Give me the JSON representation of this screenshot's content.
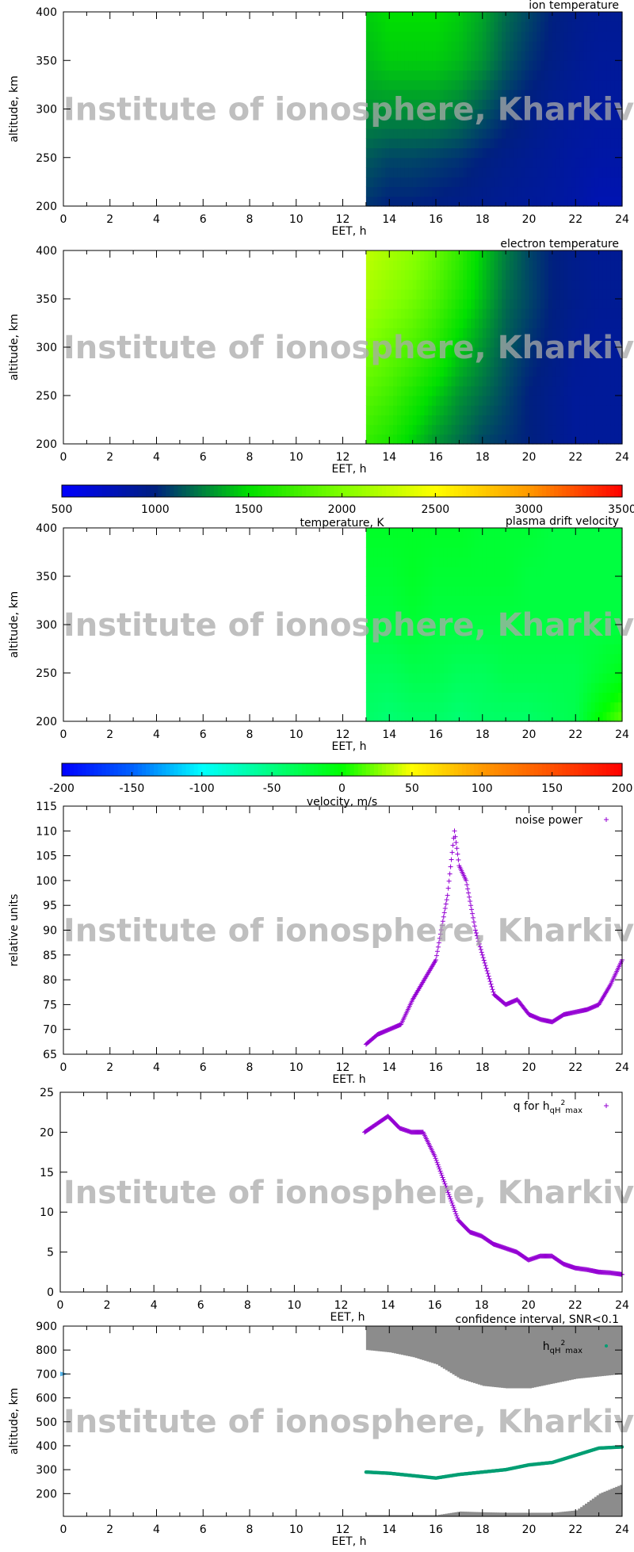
{
  "watermark": "Institute of ionosphere, Kharkiv",
  "chart_data": [
    {
      "type": "heatmap",
      "title": "ion temperature",
      "xlabel": "EET, h",
      "ylabel": "altitude, km",
      "xlim": [
        0,
        24
      ],
      "ylim": [
        200,
        400
      ],
      "x_ticks": [
        0,
        2,
        4,
        6,
        8,
        10,
        12,
        14,
        16,
        18,
        20,
        22,
        24
      ],
      "y_ticks": [
        200,
        250,
        300,
        350,
        400
      ],
      "x": [
        13,
        14,
        15,
        16,
        17,
        18,
        19,
        20,
        21,
        22,
        23,
        24
      ],
      "y": [
        200,
        250,
        300,
        350,
        400
      ],
      "values": [
        [
          1050,
          1000,
          1000,
          980,
          960,
          940,
          920,
          900,
          880,
          850,
          800,
          800
        ],
        [
          1150,
          1100,
          1100,
          1080,
          1050,
          1000,
          960,
          930,
          900,
          870,
          850,
          850
        ],
        [
          1300,
          1300,
          1300,
          1300,
          1250,
          1150,
          1050,
          980,
          930,
          900,
          880,
          880
        ],
        [
          1400,
          1450,
          1450,
          1450,
          1400,
          1300,
          1150,
          1050,
          980,
          930,
          900,
          900
        ],
        [
          1450,
          1500,
          1500,
          1500,
          1450,
          1350,
          1200,
          1100,
          1000,
          950,
          920,
          920
        ]
      ],
      "colorscale": "temperature"
    },
    {
      "type": "heatmap",
      "title": "electron temperature",
      "xlabel": "EET, h",
      "ylabel": "altitude, km",
      "xlim": [
        0,
        24
      ],
      "ylim": [
        200,
        400
      ],
      "x_ticks": [
        0,
        2,
        4,
        6,
        8,
        10,
        12,
        14,
        16,
        18,
        20,
        22,
        24
      ],
      "y_ticks": [
        200,
        250,
        300,
        350,
        400
      ],
      "x": [
        13,
        14,
        15,
        16,
        17,
        18,
        19,
        20,
        21,
        22,
        23,
        24
      ],
      "y": [
        200,
        250,
        300,
        350,
        400
      ],
      "values": [
        [
          1700,
          1600,
          1450,
          1300,
          1200,
          1100,
          1050,
          1000,
          950,
          900,
          900,
          900
        ],
        [
          1850,
          1750,
          1600,
          1450,
          1300,
          1200,
          1100,
          1000,
          950,
          900,
          900,
          900
        ],
        [
          2000,
          1900,
          1800,
          1650,
          1450,
          1300,
          1150,
          1050,
          980,
          920,
          900,
          900
        ],
        [
          2150,
          2050,
          1950,
          1800,
          1600,
          1400,
          1200,
          1100,
          1000,
          950,
          920,
          920
        ],
        [
          2250,
          2150,
          2050,
          1900,
          1700,
          1450,
          1250,
          1100,
          1000,
          950,
          920,
          920
        ]
      ],
      "colorscale": "temperature"
    },
    {
      "type": "colorbar",
      "label": "temperature, K",
      "range": [
        500,
        3500
      ],
      "ticks": [
        500,
        1000,
        1500,
        2000,
        2500,
        3000,
        3500
      ],
      "colors": [
        "#0000ff",
        "#00207f",
        "#00e000",
        "#80ff00",
        "#ffff00",
        "#ff9900",
        "#ff0000"
      ]
    },
    {
      "type": "heatmap",
      "title": "plasma drift velocity",
      "xlabel": "EET, h",
      "ylabel": "altitude, km",
      "xlim": [
        0,
        24
      ],
      "ylim": [
        200,
        400
      ],
      "x_ticks": [
        0,
        2,
        4,
        6,
        8,
        10,
        12,
        14,
        16,
        18,
        20,
        22,
        24
      ],
      "y_ticks": [
        200,
        250,
        300,
        350,
        400
      ],
      "x": [
        13,
        14,
        15,
        16,
        17,
        18,
        19,
        20,
        21,
        22,
        23,
        24
      ],
      "y": [
        200,
        250,
        300,
        350,
        400
      ],
      "values": [
        [
          -40,
          -45,
          -40,
          -40,
          -45,
          -40,
          -40,
          -40,
          -35,
          -30,
          0,
          20
        ],
        [
          -35,
          -35,
          -30,
          -30,
          -35,
          -35,
          -30,
          -30,
          -30,
          -30,
          -20,
          -10
        ],
        [
          -25,
          -25,
          -20,
          -25,
          -25,
          -25,
          -25,
          -25,
          -25,
          -25,
          -25,
          -25
        ],
        [
          -20,
          -20,
          -15,
          -20,
          -20,
          -20,
          -20,
          -25,
          -25,
          -25,
          -25,
          -25
        ],
        [
          -15,
          -15,
          -15,
          -15,
          -15,
          -20,
          -20,
          -20,
          -25,
          -25,
          -25,
          -25
        ]
      ],
      "colorscale": "velocity"
    },
    {
      "type": "colorbar",
      "label": "velocity, m/s",
      "range": [
        -200,
        200
      ],
      "ticks": [
        -200,
        -150,
        -100,
        -50,
        0,
        50,
        100,
        150,
        200
      ],
      "colors": [
        "#0000ff",
        "#0060ff",
        "#00ffff",
        "#00ff80",
        "#00ff00",
        "#ffff00",
        "#ff9900",
        "#ff5000",
        "#ff0000"
      ]
    },
    {
      "type": "scatter",
      "legend": "noise power",
      "xlabel": "EET. h",
      "ylabel": "relative units",
      "xlim": [
        0,
        24
      ],
      "ylim": [
        65,
        115
      ],
      "x_ticks": [
        0,
        2,
        4,
        6,
        8,
        10,
        12,
        14,
        16,
        18,
        20,
        22,
        24
      ],
      "y_ticks": [
        65,
        70,
        75,
        80,
        85,
        90,
        95,
        100,
        105,
        110,
        115
      ],
      "color": "#9400d3",
      "marker": "+",
      "x": [
        13,
        13.5,
        14,
        14.5,
        15,
        15.5,
        16,
        16.5,
        16.8,
        17,
        17.3,
        17.7,
        18,
        18.5,
        19,
        19.5,
        20,
        20.5,
        21,
        21.5,
        22,
        22.5,
        23,
        23.5,
        24
      ],
      "y": [
        67,
        69,
        70,
        71,
        76,
        80,
        84,
        97,
        110,
        103,
        100,
        90,
        85,
        77,
        75,
        76,
        73,
        72,
        71.5,
        73,
        73.5,
        74,
        75,
        79,
        84
      ]
    },
    {
      "type": "scatter",
      "legend": "q for h",
      "legend_sub": "qH",
      "legend_sup": "2",
      "legend_sub2": "max",
      "xlabel": "EET, h",
      "ylabel": "",
      "xlim": [
        0,
        24
      ],
      "ylim": [
        0,
        25
      ],
      "x_ticks": [
        0,
        2,
        4,
        6,
        8,
        10,
        12,
        14,
        16,
        18,
        20,
        22,
        24
      ],
      "y_ticks": [
        0,
        5,
        10,
        15,
        20,
        25
      ],
      "color": "#9400d3",
      "marker": "+",
      "x": [
        13,
        13.5,
        14,
        14.5,
        15,
        15.5,
        16,
        16.5,
        17,
        17.5,
        18,
        18.5,
        19,
        19.5,
        20,
        20.5,
        21,
        21.5,
        22,
        22.5,
        23,
        23.5,
        24
      ],
      "y": [
        20,
        21,
        22,
        20.5,
        20,
        20,
        17,
        13,
        9,
        7.5,
        7,
        6,
        5.5,
        5,
        4,
        4.5,
        4.5,
        3.5,
        3,
        2.8,
        2.5,
        2.4,
        2.2
      ]
    },
    {
      "type": "scatter",
      "title": "confidence interval, SNR<0.1",
      "legend": "h",
      "legend_sub": "qH",
      "legend_sup": "2",
      "legend_sub2": "max",
      "xlabel": "EET, h",
      "ylabel": "altitude, km",
      "xlim": [
        0,
        24
      ],
      "ylim": [
        105,
        900
      ],
      "x_ticks": [
        0,
        2,
        4,
        6,
        8,
        10,
        12,
        14,
        16,
        18,
        20,
        22,
        24
      ],
      "y_ticks": [
        200,
        300,
        400,
        500,
        600,
        700,
        800,
        900
      ],
      "color": "#009e73",
      "band_color": "#8c8c8c",
      "marker_color": "#56b4e9",
      "marker_value": 700,
      "x": [
        13,
        14,
        15,
        16,
        17,
        18,
        19,
        20,
        21,
        22,
        23,
        24
      ],
      "y": [
        290,
        285,
        275,
        265,
        280,
        290,
        300,
        320,
        330,
        360,
        390,
        395
      ],
      "upper_band_lower_edge": [
        800,
        790,
        770,
        740,
        680,
        650,
        640,
        640,
        660,
        680,
        690,
        700
      ],
      "lower_band_upper_edge": [
        110,
        110,
        110,
        110,
        125,
        122,
        120,
        120,
        120,
        130,
        200,
        240
      ]
    }
  ]
}
